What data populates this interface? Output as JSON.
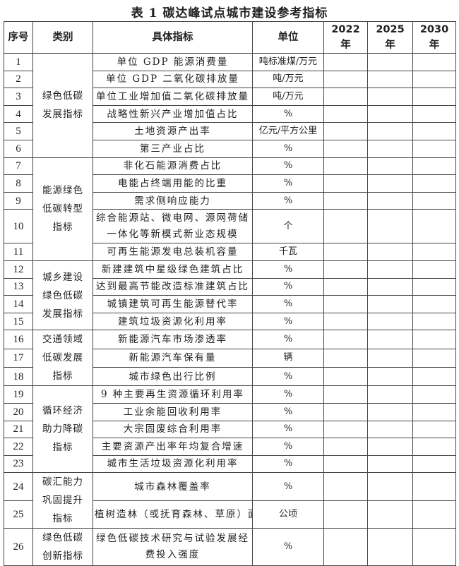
{
  "title": "表 1  碳达峰试点城市建设参考指标",
  "headers": [
    "序号",
    "类别",
    "具体指标",
    "单位",
    "2022 年",
    "2025 年",
    "2030 年"
  ],
  "categories": [
    {
      "label": "绿色低碳发展指标",
      "rows": [
        {
          "no": "1",
          "indicator": "单位 GDP 能源消费量",
          "unit": "吨标准煤/万元"
        },
        {
          "no": "2",
          "indicator": "单位 GDP 二氧化碳排放量",
          "unit": "吨/万元"
        },
        {
          "no": "3",
          "indicator": "单位工业增加值二氧化碳排放量",
          "unit": "吨/万元"
        },
        {
          "no": "4",
          "indicator": "战略性新兴产业增加值占比",
          "unit": "%"
        },
        {
          "no": "5",
          "indicator": "土地资源产出率",
          "unit": "亿元/平方公里"
        },
        {
          "no": "6",
          "indicator": "第三产业占比",
          "unit": "%"
        }
      ]
    },
    {
      "label": "能源绿色低碳转型指标",
      "rows": [
        {
          "no": "7",
          "indicator": "非化石能源消费占比",
          "unit": "%"
        },
        {
          "no": "8",
          "indicator": "电能占终端用能的比重",
          "unit": "%"
        },
        {
          "no": "9",
          "indicator": "需求侧响应能力",
          "unit": "%"
        },
        {
          "no": "10",
          "indicator": "综合能源站、微电网、源网荷储一体化等新模式新业态规模",
          "unit": "个",
          "double": true
        },
        {
          "no": "11",
          "indicator": "可再生能源发电总装机容量",
          "unit": "千瓦"
        }
      ]
    },
    {
      "label": "城乡建设绿色低碳发展指标",
      "rows": [
        {
          "no": "12",
          "indicator": "新建建筑中星级绿色建筑占比",
          "unit": "%"
        },
        {
          "no": "13",
          "indicator": "达到最高节能改造标准建筑占比",
          "unit": "%"
        },
        {
          "no": "14",
          "indicator": "城镇建筑可再生能源替代率",
          "unit": "%"
        },
        {
          "no": "15",
          "indicator": "建筑垃圾资源化利用率",
          "unit": "%"
        }
      ]
    },
    {
      "label": "交通领域低碳发展指标",
      "rows": [
        {
          "no": "16",
          "indicator": "新能源汽车市场渗透率",
          "unit": "%"
        },
        {
          "no": "17",
          "indicator": "新能源汽车保有量",
          "unit": "辆"
        },
        {
          "no": "18",
          "indicator": "城市绿色出行比例",
          "unit": "%"
        }
      ]
    },
    {
      "label": "循环经济助力降碳指标",
      "rows": [
        {
          "no": "19",
          "indicator": "9 种主要再生资源循环利用率",
          "unit": "%"
        },
        {
          "no": "20",
          "indicator": "工业余能回收利用率",
          "unit": "%"
        },
        {
          "no": "21",
          "indicator": "大宗固废综合利用率",
          "unit": "%"
        },
        {
          "no": "22",
          "indicator": "主要资源产出率年均复合增速",
          "unit": "%"
        },
        {
          "no": "23",
          "indicator": "城市生活垃圾资源化利用率",
          "unit": "%"
        }
      ]
    },
    {
      "label": "碳汇能力巩固提升指标",
      "rows": [
        {
          "no": "24",
          "indicator": "城市森林覆盖率",
          "unit": "%"
        },
        {
          "no": "25",
          "indicator": "植树造林（或抚育森林、草原）面积",
          "unit": "公顷"
        }
      ]
    },
    {
      "label": "绿色低碳创新指标",
      "rows": [
        {
          "no": "26",
          "indicator": "绿色低碳技术研究与试验发展经费投入强度",
          "unit": "%",
          "double": true
        }
      ]
    }
  ]
}
